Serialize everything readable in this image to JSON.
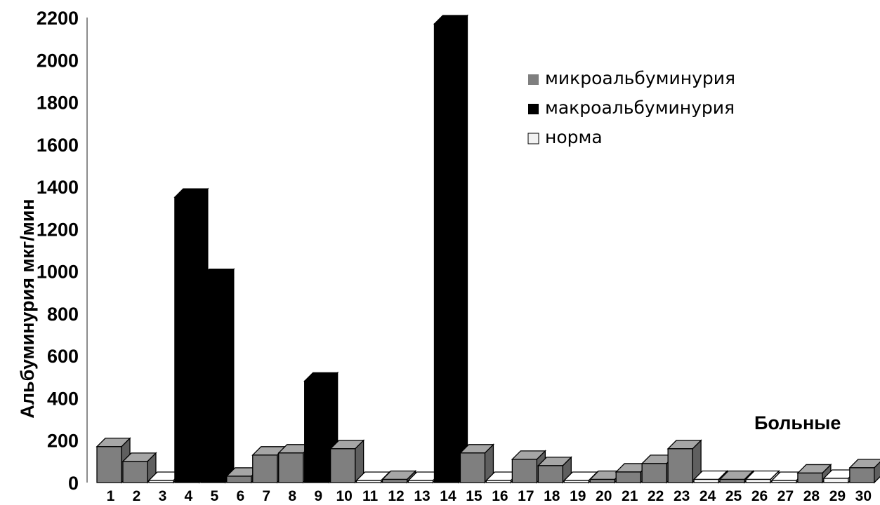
{
  "chart_data": {
    "type": "bar",
    "title": "",
    "xlabel": "",
    "ylabel": "Альбуминурия мкг/мин",
    "annotation": "Больные",
    "ylim": [
      0,
      2200
    ],
    "yticks": [
      0,
      200,
      400,
      600,
      800,
      1000,
      1200,
      1400,
      1600,
      1800,
      2000,
      2200
    ],
    "grid": false,
    "legend_position": "top-right",
    "categories": [
      "1",
      "2",
      "3",
      "4",
      "5",
      "6",
      "7",
      "8",
      "9",
      "10",
      "11",
      "12",
      "13",
      "14",
      "15",
      "16",
      "17",
      "18",
      "19",
      "20",
      "21",
      "22",
      "23",
      "24",
      "25",
      "26",
      "27",
      "28",
      "29",
      "30"
    ],
    "classes": [
      "micro",
      "micro",
      "norm",
      "macro",
      "macro",
      "micro",
      "micro",
      "micro",
      "macro",
      "micro",
      "norm",
      "micro",
      "norm",
      "macro",
      "micro",
      "norm",
      "micro",
      "micro",
      "norm",
      "micro",
      "micro",
      "micro",
      "micro",
      "norm",
      "micro",
      "norm",
      "norm",
      "micro",
      "norm",
      "micro"
    ],
    "values": [
      170,
      100,
      10,
      1350,
      970,
      30,
      130,
      140,
      480,
      160,
      5,
      15,
      10,
      2170,
      140,
      10,
      110,
      80,
      10,
      15,
      50,
      90,
      160,
      15,
      15,
      15,
      10,
      45,
      20,
      70
    ],
    "series": [
      {
        "key": "micro",
        "name": "микроальбуминурия",
        "color": "#7f7f7f",
        "side_color": "#5f5f5f",
        "top_color": "#a6a6a6"
      },
      {
        "key": "macro",
        "name": "макроальбуминурия",
        "color": "#000000",
        "side_color": "#000000",
        "top_color": "#000000"
      },
      {
        "key": "norm",
        "name": "норма",
        "color": "#f2f2f2",
        "side_color": "#cfcfcf",
        "top_color": "#ffffff"
      }
    ]
  }
}
